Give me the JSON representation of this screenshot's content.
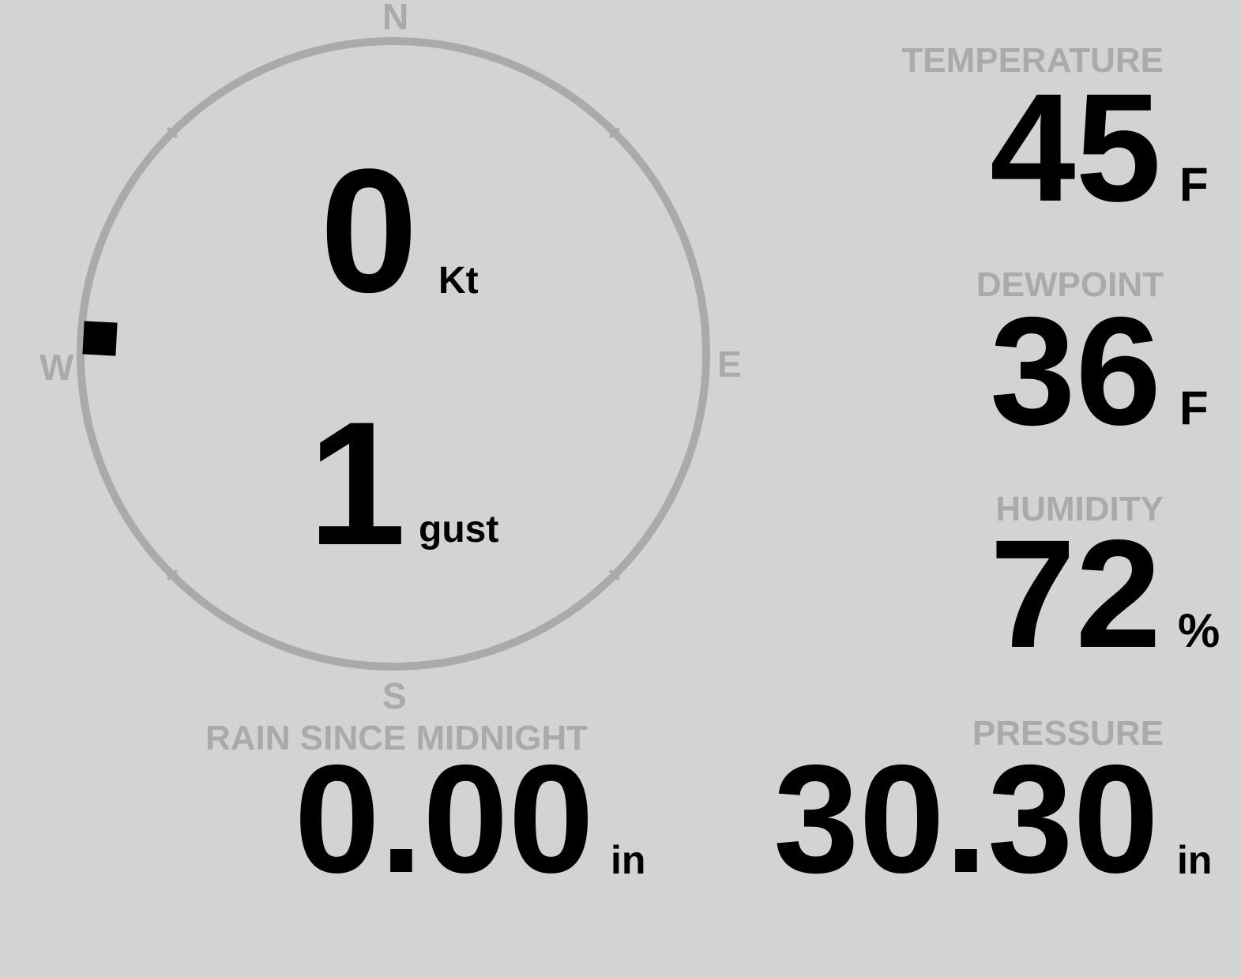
{
  "colors": {
    "background": "#d3d3d3",
    "label": "#aaaaaa",
    "value": "#000000",
    "compass_ring": "#aaaaaa",
    "wind_marker": "#000000"
  },
  "wind": {
    "compass": {
      "n": "N",
      "e": "E",
      "s": "S",
      "w": "W"
    },
    "direction_deg": 273,
    "speed": "0",
    "speed_unit": "Kt",
    "gust": "1",
    "gust_unit": "gust"
  },
  "temperature": {
    "label": "TEMPERATURE",
    "value": "45",
    "unit": "F"
  },
  "dewpoint": {
    "label": "DEWPOINT",
    "value": "36",
    "unit": "F"
  },
  "humidity": {
    "label": "HUMIDITY",
    "value": "72",
    "unit": "%"
  },
  "rain": {
    "label": "RAIN SINCE MIDNIGHT",
    "value": "0.00",
    "unit": "in"
  },
  "pressure": {
    "label": "PRESSURE",
    "value": "30.30",
    "unit": "in"
  }
}
